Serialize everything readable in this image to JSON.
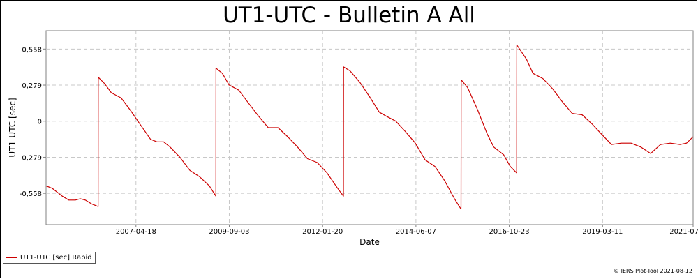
{
  "chart_data": {
    "type": "line",
    "title": "UT1-UTC - Bulletin A All",
    "xlabel": "Date",
    "ylabel": "UT1-UTC [sec]",
    "x_type": "date",
    "xlim": [
      "2005-01-01",
      "2021-07-01"
    ],
    "ylim": [
      -0.8,
      0.7
    ],
    "x_ticks": [
      "2007-04-18",
      "2009-09-03",
      "2012-01-20",
      "2014-06-07",
      "2016-10-23",
      "2019-03-11",
      "2021-07"
    ],
    "y_ticks": [
      0.558,
      0.279,
      0,
      -0.279,
      -0.558
    ],
    "y_tick_labels": [
      "0,558",
      "0,279",
      "0",
      "-0,279",
      "-0,558"
    ],
    "grid": true,
    "legend_position": "bottom-left",
    "series": [
      {
        "name": "UT1-UTC [sec] Rapid",
        "color": "#cc0000",
        "points": [
          [
            "2005-01-01",
            -0.5
          ],
          [
            "2005-03-01",
            -0.52
          ],
          [
            "2005-06-01",
            -0.58
          ],
          [
            "2005-08-01",
            -0.61
          ],
          [
            "2005-10-01",
            -0.61
          ],
          [
            "2005-11-15",
            -0.6
          ],
          [
            "2006-01-01",
            -0.61
          ],
          [
            "2006-03-01",
            -0.64
          ],
          [
            "2006-05-01",
            -0.66
          ],
          [
            "2006-05-02",
            0.34
          ],
          [
            "2006-07-01",
            0.29
          ],
          [
            "2006-09-01",
            0.22
          ],
          [
            "2006-12-01",
            0.18
          ],
          [
            "2007-03-01",
            0.08
          ],
          [
            "2007-06-01",
            -0.03
          ],
          [
            "2007-09-01",
            -0.14
          ],
          [
            "2007-11-01",
            -0.16
          ],
          [
            "2008-01-01",
            -0.16
          ],
          [
            "2008-03-01",
            -0.2
          ],
          [
            "2008-06-01",
            -0.28
          ],
          [
            "2008-09-01",
            -0.38
          ],
          [
            "2008-12-01",
            -0.43
          ],
          [
            "2009-03-01",
            -0.5
          ],
          [
            "2009-05-01",
            -0.58
          ],
          [
            "2009-05-02",
            0.41
          ],
          [
            "2009-07-01",
            0.37
          ],
          [
            "2009-09-01",
            0.28
          ],
          [
            "2009-12-01",
            0.24
          ],
          [
            "2010-03-01",
            0.14
          ],
          [
            "2010-06-01",
            0.04
          ],
          [
            "2010-09-01",
            -0.05
          ],
          [
            "2010-12-01",
            -0.05
          ],
          [
            "2011-03-01",
            -0.12
          ],
          [
            "2011-06-01",
            -0.2
          ],
          [
            "2011-09-01",
            -0.29
          ],
          [
            "2011-12-01",
            -0.32
          ],
          [
            "2012-03-01",
            -0.4
          ],
          [
            "2012-06-01",
            -0.51
          ],
          [
            "2012-08-01",
            -0.58
          ],
          [
            "2012-08-02",
            0.42
          ],
          [
            "2012-10-01",
            0.39
          ],
          [
            "2013-01-01",
            0.3
          ],
          [
            "2013-04-01",
            0.19
          ],
          [
            "2013-07-01",
            0.07
          ],
          [
            "2013-09-01",
            0.04
          ],
          [
            "2013-12-01",
            0.0
          ],
          [
            "2014-03-01",
            -0.08
          ],
          [
            "2014-06-01",
            -0.17
          ],
          [
            "2014-09-01",
            -0.3
          ],
          [
            "2014-12-01",
            -0.35
          ],
          [
            "2015-03-01",
            -0.46
          ],
          [
            "2015-06-01",
            -0.6
          ],
          [
            "2015-08-01",
            -0.68
          ],
          [
            "2015-08-02",
            0.32
          ],
          [
            "2015-10-01",
            0.26
          ],
          [
            "2016-01-01",
            0.09
          ],
          [
            "2016-04-01",
            -0.1
          ],
          [
            "2016-06-01",
            -0.2
          ],
          [
            "2016-09-01",
            -0.26
          ],
          [
            "2016-11-01",
            -0.35
          ],
          [
            "2016-12-31",
            -0.4
          ],
          [
            "2017-01-01",
            0.59
          ],
          [
            "2017-04-01",
            0.48
          ],
          [
            "2017-06-01",
            0.37
          ],
          [
            "2017-09-01",
            0.33
          ],
          [
            "2017-12-01",
            0.25
          ],
          [
            "2018-03-01",
            0.15
          ],
          [
            "2018-06-01",
            0.06
          ],
          [
            "2018-09-01",
            0.05
          ],
          [
            "2018-12-01",
            -0.02
          ],
          [
            "2019-03-01",
            -0.1
          ],
          [
            "2019-06-01",
            -0.18
          ],
          [
            "2019-09-01",
            -0.17
          ],
          [
            "2019-12-01",
            -0.17
          ],
          [
            "2020-03-01",
            -0.2
          ],
          [
            "2020-06-01",
            -0.25
          ],
          [
            "2020-09-01",
            -0.18
          ],
          [
            "2020-12-01",
            -0.17
          ],
          [
            "2021-03-01",
            -0.18
          ],
          [
            "2021-05-01",
            -0.17
          ],
          [
            "2021-07-01",
            -0.12
          ]
        ]
      }
    ]
  },
  "footer": {
    "copyright": "© IERS Plot-Tool 2021-08-12"
  }
}
